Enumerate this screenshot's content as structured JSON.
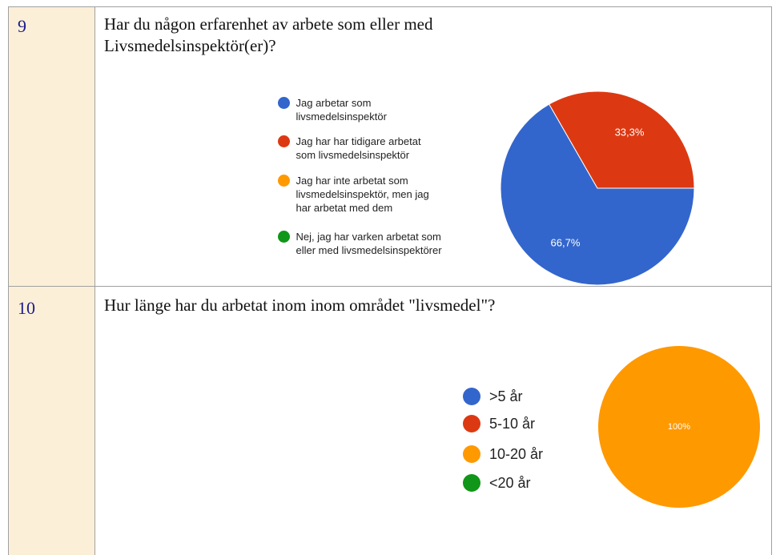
{
  "rows": [
    {
      "number": "9",
      "question": "Har du någon erfarenhet av arbete som eller med Livsmedelsinspektör(er)?",
      "chart": {
        "type": "pie",
        "categories": [
          "Jag arbetar som livsmedelsinspektör",
          "Jag har har tidigare arbetat som livsmedelsinspektör",
          "Jag har inte arbetat som livsmedelsinspektör, men jag har arbetat med dem",
          "Nej, jag har varken arbetat som eller med livsmedelsinspektörer"
        ],
        "values": [
          66.7,
          33.3,
          0,
          0
        ],
        "value_labels": [
          "66,7%",
          "33,3%",
          null,
          null
        ],
        "colors": [
          "#3366cc",
          "#dc3912",
          "#ff9900",
          "#109618"
        ]
      }
    },
    {
      "number": "10",
      "question": "Hur länge har du arbetat inom inom området \"livsmedel\"?",
      "chart": {
        "type": "pie",
        "categories": [
          ">5 år",
          "5-10 år",
          "10-20 år",
          "<20 år"
        ],
        "values": [
          0,
          0,
          100,
          0
        ],
        "value_labels": [
          null,
          null,
          "100%",
          null
        ],
        "colors": [
          "#3366cc",
          "#dc3912",
          "#ff9900",
          "#109618"
        ]
      }
    }
  ]
}
